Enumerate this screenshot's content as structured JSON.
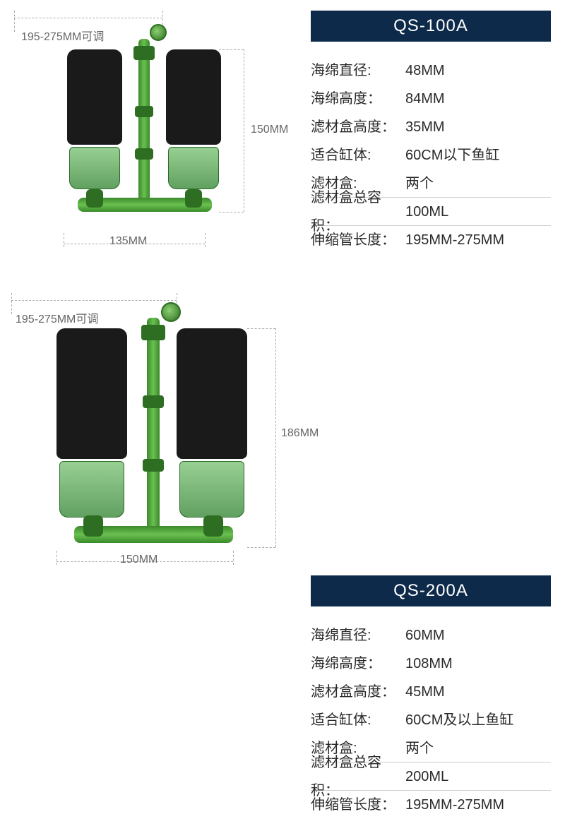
{
  "products": [
    {
      "model": "QS-100A",
      "badge_bg": "#0d2a4a",
      "badge_fg": "#ffffff",
      "diagram": {
        "top_adjust_label": "195-275MM可调",
        "height_label": "150MM",
        "width_label": "135MM"
      },
      "specs": [
        {
          "label": "海绵直径:",
          "value": "48MM",
          "underline": false
        },
        {
          "label": "海绵高度：",
          "value": "84MM",
          "underline": false
        },
        {
          "label": "滤材盒高度：",
          "value": "35MM",
          "underline": false
        },
        {
          "label": "适合缸体:",
          "value": "60CM以下鱼缸",
          "underline": false
        },
        {
          "label": "滤材盒:",
          "value": "两个",
          "underline": true
        },
        {
          "label": "滤材盒总容积：",
          "value": "100ML",
          "underline": true
        },
        {
          "label": "伸缩管长度：",
          "value": "195MM-275MM",
          "underline": false
        }
      ]
    },
    {
      "model": "QS-200A",
      "badge_bg": "#0d2a4a",
      "badge_fg": "#ffffff",
      "diagram": {
        "top_adjust_label": "195-275MM可调",
        "height_label": "186MM",
        "width_label": "150MM"
      },
      "specs": [
        {
          "label": "海绵直径:",
          "value": "60MM",
          "underline": false
        },
        {
          "label": "海绵高度：",
          "value": "108MM",
          "underline": false
        },
        {
          "label": "滤材盒高度：",
          "value": "45MM",
          "underline": false
        },
        {
          "label": "适合缸体:",
          "value": "60CM及以上鱼缸",
          "underline": false
        },
        {
          "label": "滤材盒:",
          "value": "两个",
          "underline": true
        },
        {
          "label": "滤材盒总容积：",
          "value": "200ML",
          "underline": true
        },
        {
          "label": "伸缩管长度：",
          "value": "195MM-275MM",
          "underline": false
        }
      ]
    }
  ],
  "style": {
    "spec_font_size": 20,
    "label_color": "#2a2a2a",
    "value_color": "#2a2a2a",
    "dim_label_color": "#666666",
    "background": "#ffffff",
    "sponge_color": "#1a1a1a",
    "tube_green": "#3a8a2a",
    "underline_color": "#d0d0d0"
  }
}
